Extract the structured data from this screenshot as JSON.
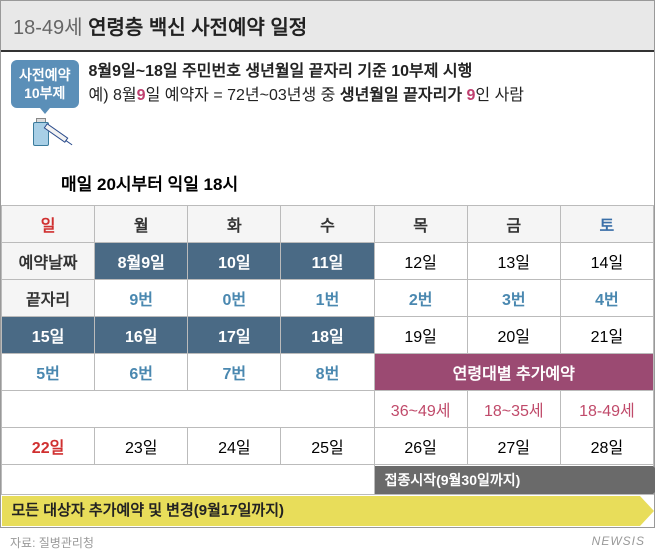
{
  "header": {
    "prefix": "18-49세",
    "title": " 연령층 백신 사전예약 일정"
  },
  "badge": {
    "line1": "사전예약",
    "line2": "10부제"
  },
  "desc": {
    "line1": "8월9일~18일 주민번호 생년월일 끝자리 기준 10부제 시행",
    "ex_prefix": "예) 8월",
    "ex_hl1": "9",
    "ex_mid": "일 예약자 = 72년~03년생 중 ",
    "ex_bold": "생년월일 끝자리가 ",
    "ex_hl2": "9",
    "ex_suffix": "인 사람"
  },
  "time": "매일 20시부터 익일 18시",
  "days": [
    "일",
    "월",
    "화",
    "수",
    "목",
    "금",
    "토"
  ],
  "rowLabels": {
    "date": "예약날짜",
    "digit": "끝자리"
  },
  "week1": {
    "dates": [
      "8월9일",
      "10일",
      "11일",
      "12일",
      "13일",
      "14일"
    ],
    "digits": [
      "9번",
      "0번",
      "1번",
      "2번",
      "3번",
      "4번"
    ]
  },
  "week2": {
    "dates": [
      "15일",
      "16일",
      "17일",
      "18일",
      "19일",
      "20일",
      "21일"
    ],
    "digits": [
      "5번",
      "6번",
      "7번",
      "8번"
    ],
    "age_head": "연령대별 추가예약",
    "age_cells": [
      "36~49세",
      "18~35세",
      "18-49세"
    ]
  },
  "week3": {
    "dates": [
      "22일",
      "23일",
      "24일",
      "25일",
      "26일",
      "27일",
      "28일"
    ]
  },
  "arrow1": "접종시작(9월30일까지)",
  "arrow2": "모든 대상자 추가예약 및 변경(9월17일까지)",
  "source": "자료: 질병관리청",
  "watermark": "NEWSIS",
  "colors": {
    "navy": "#4a6a85",
    "blue": "#4a88b0",
    "purple": "#9b4a72",
    "rose": "#c04a6a",
    "grey": "#6a6a6a",
    "yellow": "#e8dd5a"
  }
}
